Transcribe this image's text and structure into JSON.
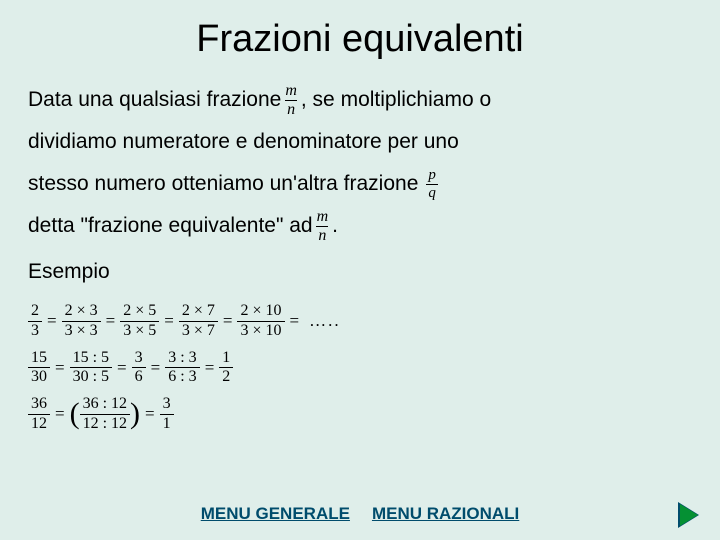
{
  "title": "Frazioni equivalenti",
  "body": {
    "l1a": "Data una qualsiasi frazione ",
    "l1b": " , se moltiplichiamo o",
    "l2": "dividiamo numeratore e denominatore per uno",
    "l3": "stesso numero otteniamo un'altra frazione ",
    "l4a": "detta \"frazione equivalente\" ad ",
    "l4b": " .",
    "l5": "Esempio"
  },
  "frac_mn": {
    "num": "m",
    "den": "n"
  },
  "frac_pq": {
    "num": "p",
    "den": "q"
  },
  "eq1": {
    "terms": [
      {
        "num": "2",
        "den": "3"
      },
      {
        "num": "2 × 3",
        "den": "3 × 3"
      },
      {
        "num": "2 × 5",
        "den": "3 × 5"
      },
      {
        "num": "2 × 7",
        "den": "3 × 7"
      },
      {
        "num": "2 × 10",
        "den": "3 × 10"
      }
    ],
    "trailing": "….."
  },
  "eq2": {
    "terms": [
      {
        "num": "15",
        "den": "30"
      },
      {
        "num": "15 : 5",
        "den": "30 : 5"
      },
      {
        "num": "3",
        "den": "6"
      },
      {
        "num": "3 : 3",
        "den": "6 : 3"
      },
      {
        "num": "1",
        "den": "2"
      }
    ]
  },
  "eq3": {
    "first": {
      "num": "36",
      "den": "12"
    },
    "paren": {
      "num": "36 : 12",
      "den": "12 : 12"
    },
    "last": {
      "num": "3",
      "den": "1"
    }
  },
  "footer": {
    "menu1": "MENU GENERALE",
    "menu2": "MENU RAZIONALI"
  },
  "colors": {
    "background": "#dfeeea",
    "text": "#000000",
    "link": "#004c6c",
    "arrow_fill": "#059033",
    "arrow_border": "#004c6c"
  },
  "typography": {
    "title_fontsize": 38,
    "body_fontsize": 21,
    "math_fontsize": 16,
    "link_fontsize": 17,
    "title_font": "Arial",
    "math_font": "Times New Roman"
  }
}
